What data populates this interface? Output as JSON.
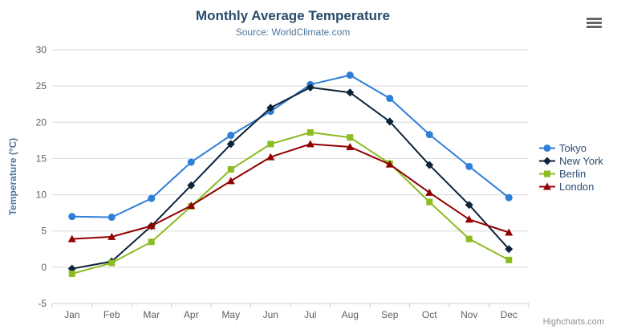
{
  "chart_data": {
    "type": "line",
    "title": "Monthly Average Temperature",
    "subtitle": "Source: WorldClimate.com",
    "categories": [
      "Jan",
      "Feb",
      "Mar",
      "Apr",
      "May",
      "Jun",
      "Jul",
      "Aug",
      "Sep",
      "Oct",
      "Nov",
      "Dec"
    ],
    "xlabel": "",
    "ylabel": "Temperature (°C)",
    "ylim": [
      -5,
      30
    ],
    "y_tick_interval": 5,
    "y_tick_labels": [
      "-5",
      "0",
      "5",
      "10",
      "15",
      "20",
      "25",
      "30"
    ],
    "grid": true,
    "legend_position": "right",
    "series": [
      {
        "name": "Tokyo",
        "color": "#2f7ed8",
        "marker": "circle",
        "values": [
          7.0,
          6.9,
          9.5,
          14.5,
          18.2,
          21.5,
          25.2,
          26.5,
          23.3,
          18.3,
          13.9,
          9.6
        ]
      },
      {
        "name": "New York",
        "color": "#0d233a",
        "marker": "diamond",
        "values": [
          -0.2,
          0.8,
          5.7,
          11.3,
          17.0,
          22.0,
          24.8,
          24.1,
          20.1,
          14.1,
          8.6,
          2.5
        ]
      },
      {
        "name": "Berlin",
        "color": "#8bbc21",
        "marker": "square",
        "values": [
          -0.9,
          0.6,
          3.5,
          8.4,
          13.5,
          17.0,
          18.6,
          17.9,
          14.3,
          9.0,
          3.9,
          1.0
        ]
      },
      {
        "name": "London",
        "color": "#910000",
        "marker": "triangle",
        "values": [
          3.9,
          4.2,
          5.7,
          8.5,
          11.9,
          15.2,
          17.0,
          16.6,
          14.2,
          10.3,
          6.6,
          4.8
        ]
      }
    ],
    "credits": "Highcharts.com"
  },
  "ui": {
    "icons": {
      "menu": "hamburger-icon"
    },
    "colors": {
      "title": "#274b6d",
      "subtitle": "#4d759e",
      "axis_labels": "#606060",
      "grid": "#d8d8d8",
      "axis_line": "#c0d0e0",
      "legend_text": "#274b6d",
      "credits": "#909090"
    }
  }
}
